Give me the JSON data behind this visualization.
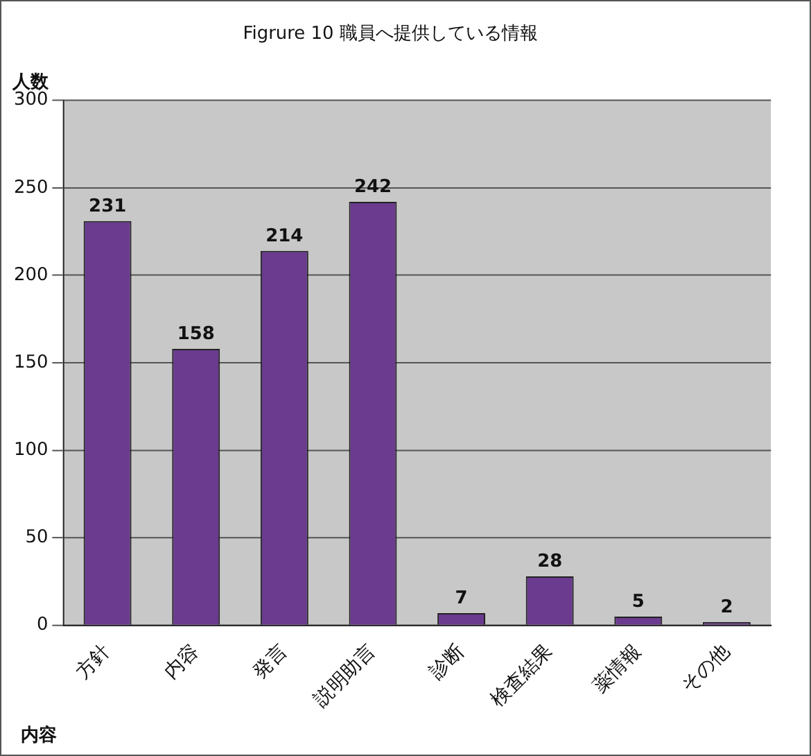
{
  "chart_data": {
    "type": "bar",
    "title": "Figrure 10 職員へ提供している情報",
    "xlabel": "内容",
    "ylabel": "人数",
    "categories": [
      "方針",
      "内容",
      "発言",
      "説明助言",
      "診断",
      "検査結果",
      "薬情報",
      "その他"
    ],
    "values": [
      231,
      158,
      214,
      242,
      7,
      28,
      5,
      2
    ],
    "color": "#6a3b8e",
    "ylim": [
      0,
      300
    ],
    "yticks": [
      0,
      50,
      100,
      150,
      200,
      250,
      300
    ],
    "grid": "y",
    "data_labels": true,
    "legend": false
  }
}
